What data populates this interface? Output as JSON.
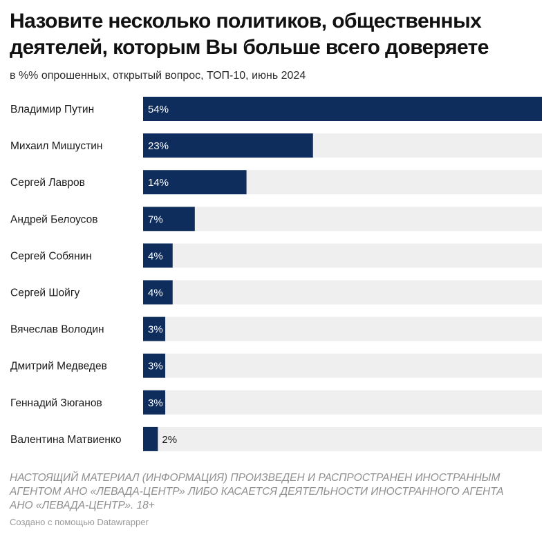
{
  "title": "Назовите несколько политиков, общественных деятелей, которым Вы больше всего доверяете",
  "subtitle": "в %% опрошенных, открытый вопрос, ТОП-10, июнь 2024",
  "footnote": "НАСТОЯЩИЙ МАТЕРИАЛ (ИНФОРМАЦИЯ) ПРОИЗВЕДЕН И РАСПРОСТРАНЕН ИНОСТРАННЫМ АГЕНТОМ АНО «ЛЕВАДА-ЦЕНТР» ЛИБО КАСАЕТСЯ ДЕЯТЕЛЬНОСТИ ИНОСТРАННОГО АГЕНТА АНО «ЛЕВАДА-ЦЕНТР». 18+",
  "credit": "Создано с помощью Datawrapper",
  "colors": {
    "bar": "#0e2d5c",
    "track": "#efefef",
    "label_inside": "#ffffff",
    "label_outside": "#1a1a1a"
  },
  "chart_data": {
    "type": "bar",
    "orientation": "horizontal",
    "categories": [
      "Владимир Путин",
      "Михаил Мишустин",
      "Сергей Лавров",
      "Андрей Белоусов",
      "Сергей Собянин",
      "Сергей Шойгу",
      "Вячеслав Володин",
      "Дмитрий Медведев",
      "Геннадий Зюганов",
      "Валентина Матвиенко"
    ],
    "values": [
      54,
      23,
      14,
      7,
      4,
      4,
      3,
      3,
      3,
      2
    ],
    "value_labels": [
      "54%",
      "23%",
      "14%",
      "7%",
      "4%",
      "4%",
      "3%",
      "3%",
      "3%",
      "2%"
    ],
    "xlim": [
      0,
      54
    ],
    "grid": false,
    "legend": "none"
  }
}
